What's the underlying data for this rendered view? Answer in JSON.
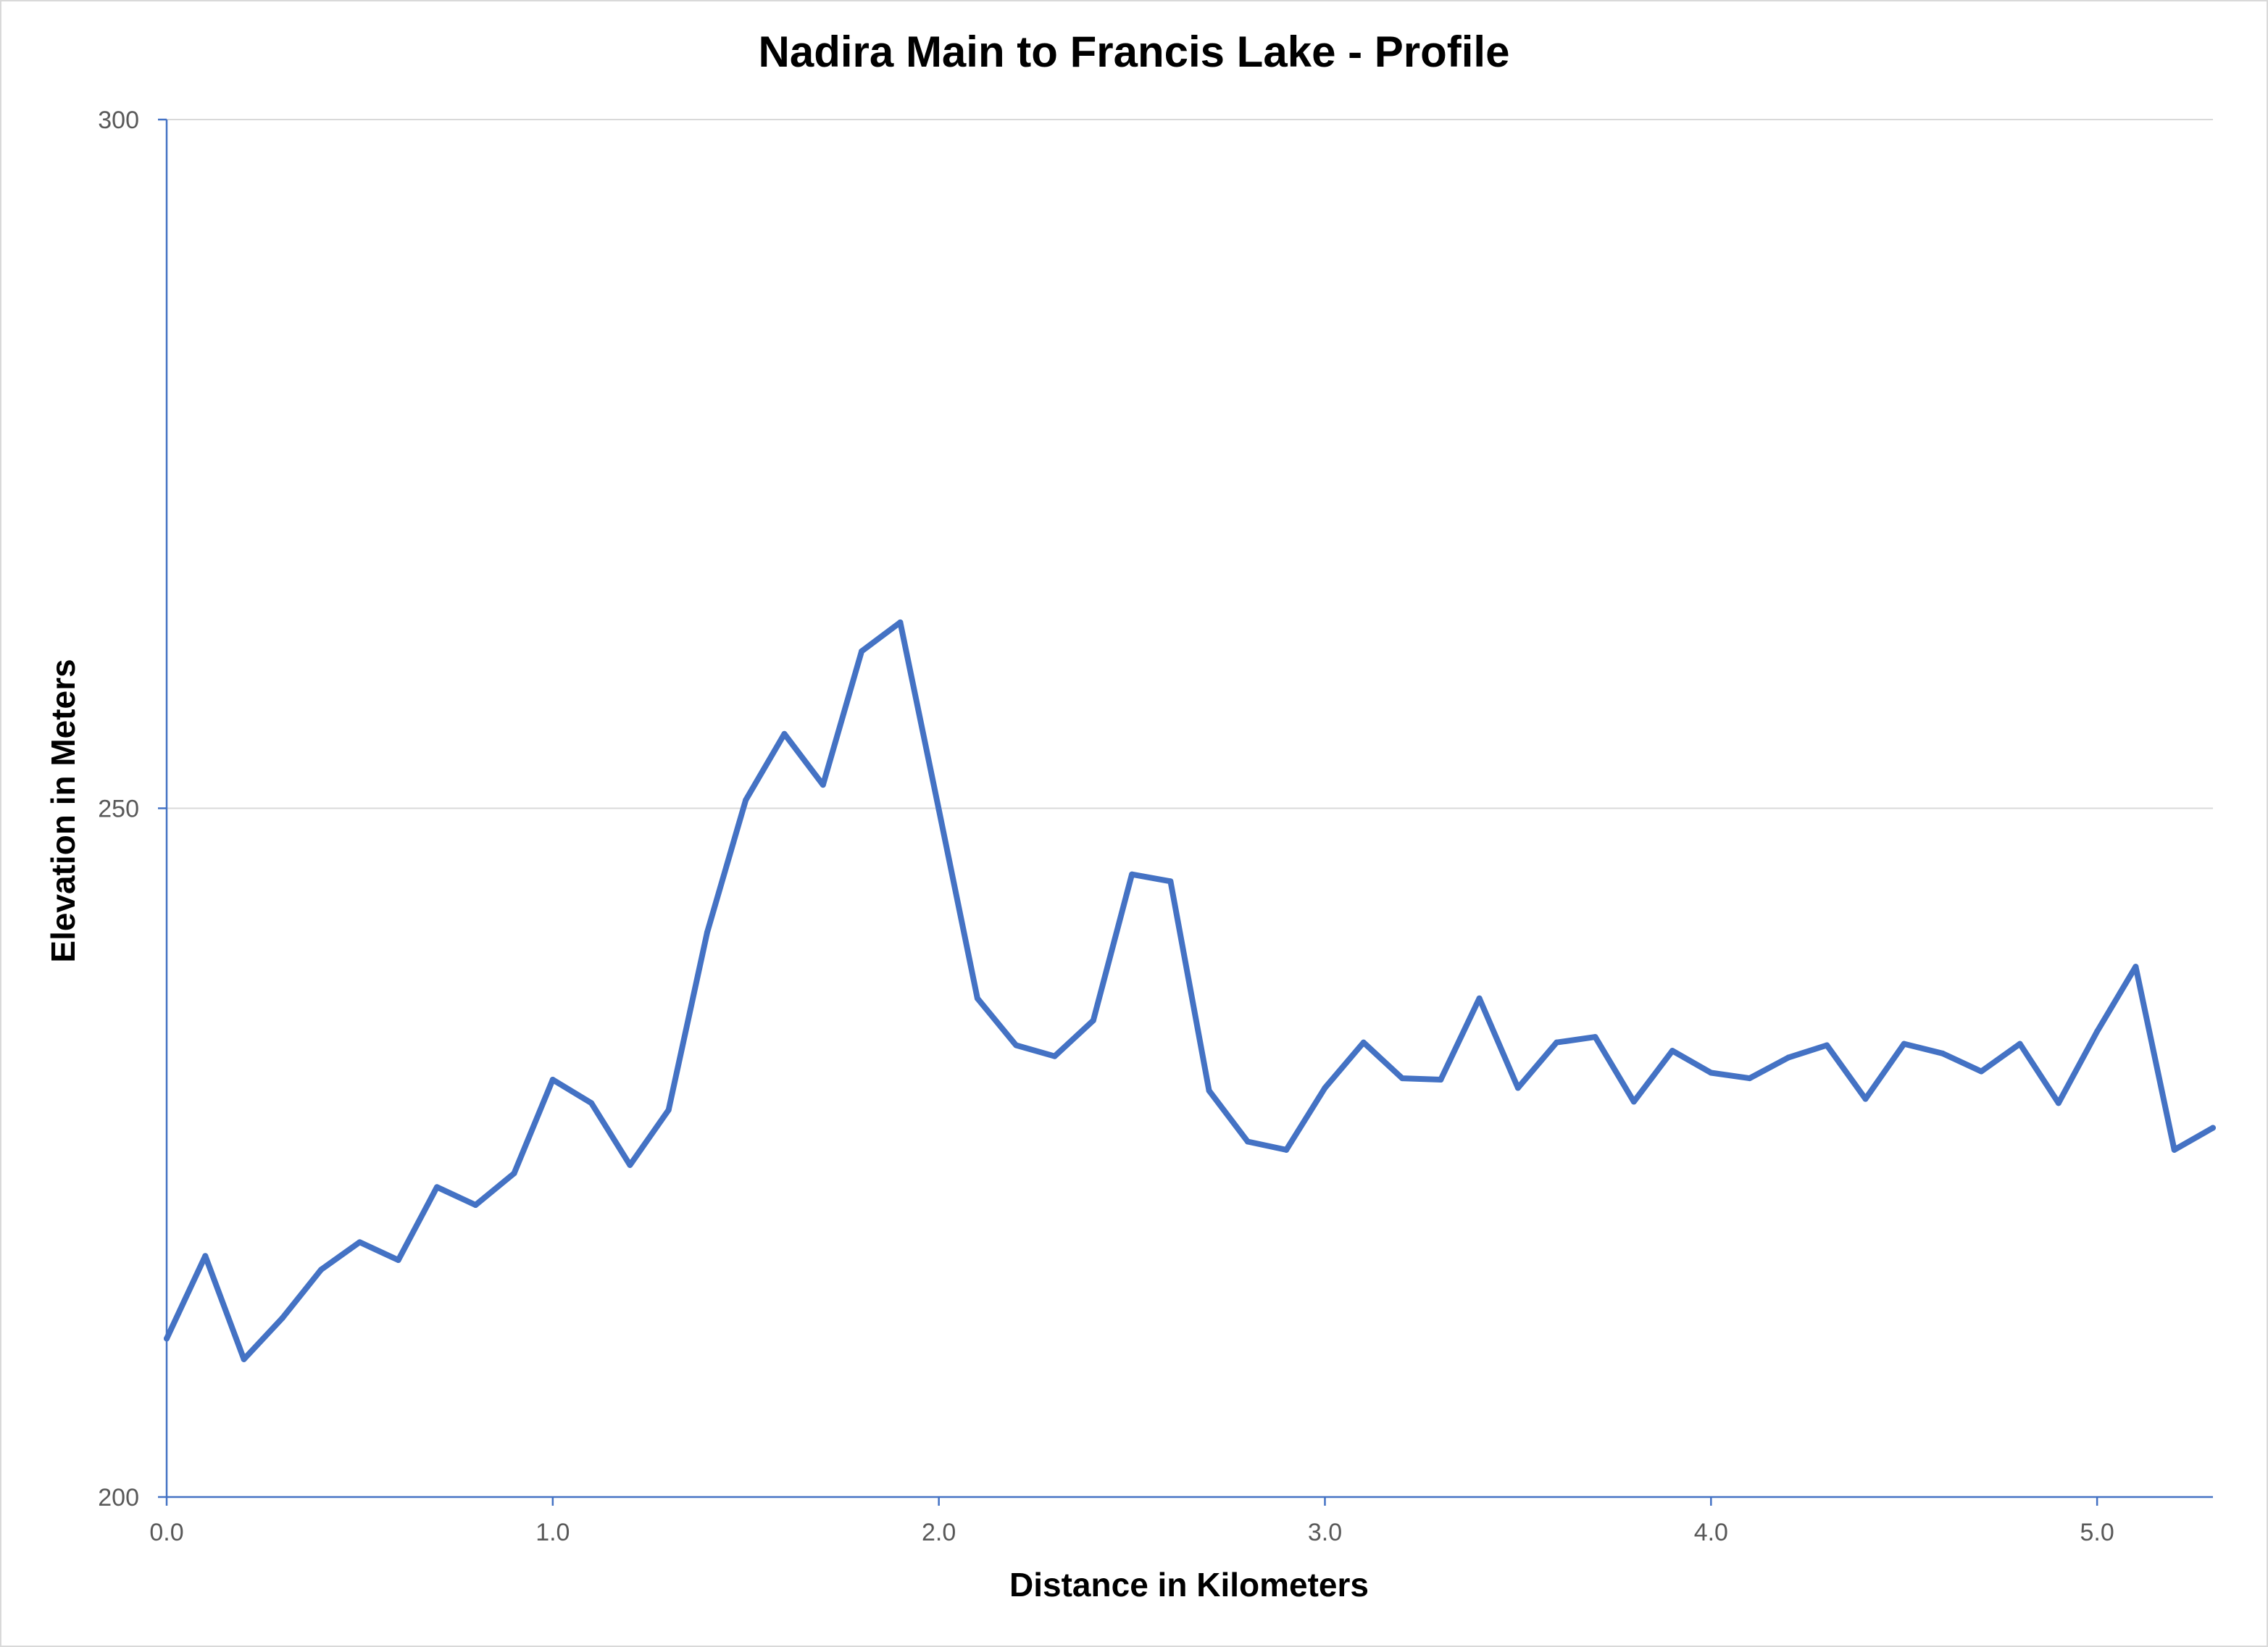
{
  "chart_data": {
    "type": "line",
    "title": "Nadira Main to Francis Lake - Profile",
    "xlabel": "Distance in Kilometers",
    "ylabel": "Elevation in Meters",
    "xlim": [
      0,
      5.3
    ],
    "ylim": [
      200,
      300
    ],
    "x_ticks": [
      0,
      1,
      2,
      3,
      4,
      5
    ],
    "x_tick_labels": [
      "0.0",
      "1.0",
      "2.0",
      "3.0",
      "4.0",
      "5.0"
    ],
    "y_ticks": [
      200,
      250,
      300
    ],
    "y_tick_labels": [
      "200",
      "250",
      "300"
    ],
    "grid": "horizontal",
    "legend": "none",
    "line_color": "#4472c4",
    "axis_color": "#4472c4",
    "grid_color": "#d9d9d9",
    "series": [
      {
        "x": [
          0.0,
          0.1,
          0.2,
          0.3,
          0.4,
          0.5,
          0.6,
          0.7,
          0.8,
          0.9,
          1.0,
          1.1,
          1.2,
          1.3,
          1.4,
          1.5,
          1.6,
          1.7,
          1.8,
          1.9,
          2.0,
          2.1,
          2.2,
          2.3,
          2.4,
          2.5,
          2.6,
          2.7,
          2.8,
          2.9,
          3.0,
          3.1,
          3.2,
          3.3,
          3.4,
          3.5,
          3.6,
          3.7,
          3.8,
          3.9,
          4.0,
          4.1,
          4.2,
          4.3,
          4.4,
          4.5,
          4.6,
          4.7,
          4.8,
          4.9,
          5.0,
          5.1,
          5.2,
          5.3
        ],
        "values": [
          211.5,
          217.5,
          210,
          213,
          216.5,
          218.5,
          217.2,
          222.5,
          221.2,
          223.5,
          230.3,
          228.6,
          224.1,
          228.1,
          241,
          250.6,
          255.4,
          251.7,
          261.4,
          263.5,
          249.9,
          236.2,
          232.8,
          232,
          234.6,
          245.2,
          244.7,
          229.5,
          225.8,
          225.2,
          229.7,
          233,
          230.4,
          230.3,
          236.2,
          229.7,
          233,
          233.4,
          228.7,
          232.4,
          230.8,
          230.4,
          231.9,
          232.8,
          228.9,
          232.9,
          232.2,
          230.9,
          232.9,
          228.6,
          233.8,
          238.5,
          225.2,
          226.8
        ]
      }
    ]
  }
}
